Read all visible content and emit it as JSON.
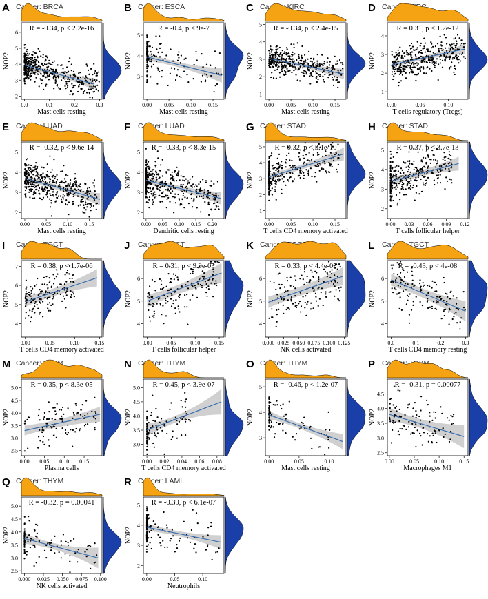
{
  "figure": {
    "ylabel": "NOP2"
  },
  "colors": {
    "top_density": "#F5A312",
    "right_density": "#1A3FA8",
    "fit_line": "#3A6FB0",
    "band": "#C8C8C8",
    "points": "#000000"
  },
  "chart_data": [
    {
      "id": "A",
      "cancer": "Cancer: BRCA",
      "stat": "R = -0.34, p < 2.2e-16",
      "type": "scatter",
      "xlabel": "Mast cells resting",
      "ylabel": "NOP2",
      "xticks": [
        0.0,
        0.1,
        0.2,
        0.3
      ],
      "xticklabels": [
        "0.0",
        "0.1",
        "0.2",
        "0.3"
      ],
      "xlim": [
        -0.012,
        0.31
      ],
      "yticks": [
        2,
        3,
        4,
        5,
        6
      ],
      "yticklabels": [
        "2",
        "3",
        "4",
        "5",
        "6"
      ],
      "ylim": [
        1.8,
        6.6
      ],
      "fit": {
        "x": [
          0.0,
          0.28
        ],
        "y": [
          3.95,
          2.75
        ]
      },
      "band_width": [
        0.15,
        0.35
      ],
      "n_points": 500,
      "x_spread": [
        0.0,
        0.3
      ],
      "x_skew": 2.2,
      "y_center": 3.5,
      "y_sd": 0.55
    },
    {
      "id": "B",
      "cancer": "Cancer: ESCA",
      "stat": "R = -0.4, p < 9e-7",
      "type": "scatter",
      "xlabel": "Mast cells resting",
      "ylabel": "NOP2",
      "xticks": [
        0.0,
        0.05,
        0.1,
        0.15
      ],
      "xticklabels": [
        "0.00",
        "0.05",
        "0.10",
        "0.15"
      ],
      "xlim": [
        -0.008,
        0.175
      ],
      "yticks": [
        3,
        4,
        5
      ],
      "yticklabels": [
        "3",
        "4",
        "5"
      ],
      "ylim": [
        1.9,
        5.6
      ],
      "fit": {
        "x": [
          0.0,
          0.17
        ],
        "y": [
          3.95,
          3.05
        ]
      },
      "band_width": [
        0.12,
        0.35
      ],
      "n_points": 150,
      "x_spread": [
        0.0,
        0.17
      ],
      "x_skew": 1.8,
      "y_center": 3.6,
      "y_sd": 0.6,
      "x_zero_frac": 0.3
    },
    {
      "id": "C",
      "cancer": "Cancer: KIRC",
      "stat": "R = -0.34, p < 2.4e-15",
      "type": "scatter",
      "xlabel": "Mast cells resting",
      "ylabel": "NOP2",
      "xticks": [
        0.0,
        0.05,
        0.1,
        0.15
      ],
      "xticklabels": [
        "0.00",
        "0.05",
        "0.10",
        "0.15"
      ],
      "xlim": [
        -0.008,
        0.175
      ],
      "yticks": [
        1,
        2,
        3,
        4,
        5
      ],
      "yticklabels": [
        "1",
        "2",
        "3",
        "4",
        "5"
      ],
      "ylim": [
        0.7,
        5.1
      ],
      "fit": {
        "x": [
          0.0,
          0.17
        ],
        "y": [
          3.05,
          2.15
        ]
      },
      "band_width": [
        0.1,
        0.3
      ],
      "n_points": 400,
      "x_spread": [
        0.0,
        0.17
      ],
      "x_skew": 1.6,
      "y_center": 2.7,
      "y_sd": 0.5
    },
    {
      "id": "D",
      "cancer": "Cancer: KIRC",
      "stat": "R = 0.31, p < 1.2e-12",
      "type": "scatter",
      "xlabel": "T cells regulatory (Tregs)",
      "ylabel": "NOP2",
      "xticks": [
        0.0,
        0.05,
        0.1
      ],
      "xticklabels": [
        "0.00",
        "0.05",
        "0.10"
      ],
      "xlim": [
        -0.008,
        0.135
      ],
      "yticks": [
        1,
        2,
        3,
        4
      ],
      "yticklabels": [
        "1",
        "2",
        "3",
        "4"
      ],
      "ylim": [
        0.6,
        4.7
      ],
      "fit": {
        "x": [
          0.0,
          0.13
        ],
        "y": [
          2.45,
          3.3
        ]
      },
      "band_width": [
        0.1,
        0.25
      ],
      "n_points": 400,
      "x_spread": [
        0.0,
        0.13
      ],
      "x_skew": 1.2,
      "y_center": 2.8,
      "y_sd": 0.5
    },
    {
      "id": "E",
      "cancer": "Cancer: LUAD",
      "stat": "R = -0.32, p < 9.6e-14",
      "type": "scatter",
      "xlabel": "Mast cells resting",
      "ylabel": "NOP2",
      "xticks": [
        0.0,
        0.05,
        0.1,
        0.15
      ],
      "xticklabels": [
        "0.00",
        "0.05",
        "0.10",
        "0.15"
      ],
      "xlim": [
        -0.008,
        0.18
      ],
      "yticks": [
        2,
        3,
        4,
        5
      ],
      "yticklabels": [
        "2",
        "3",
        "4",
        "5"
      ],
      "ylim": [
        1.7,
        5.5
      ],
      "fit": {
        "x": [
          0.0,
          0.175
        ],
        "y": [
          3.7,
          2.65
        ]
      },
      "band_width": [
        0.12,
        0.3
      ],
      "n_points": 450,
      "x_spread": [
        0.0,
        0.17
      ],
      "x_skew": 1.5,
      "y_center": 3.3,
      "y_sd": 0.55
    },
    {
      "id": "F",
      "cancer": "Cancer: LUAD",
      "stat": "R = -0.33, p < 8.3e-15",
      "type": "scatter",
      "xlabel": "Dendritic cells resting",
      "ylabel": "NOP2",
      "xticks": [
        0.0,
        0.05,
        0.1,
        0.15,
        0.2
      ],
      "xticklabels": [
        "0.00",
        "0.05",
        "0.10",
        "0.15",
        "0.20"
      ],
      "xlim": [
        -0.008,
        0.235
      ],
      "yticks": [
        2,
        3,
        4,
        5
      ],
      "yticklabels": [
        "2",
        "3",
        "4",
        "5"
      ],
      "ylim": [
        1.7,
        5.5
      ],
      "fit": {
        "x": [
          0.0,
          0.225
        ],
        "y": [
          3.6,
          2.7
        ]
      },
      "band_width": [
        0.12,
        0.3
      ],
      "n_points": 450,
      "x_spread": [
        0.0,
        0.22
      ],
      "x_skew": 2.0,
      "y_center": 3.3,
      "y_sd": 0.55,
      "x_zero_frac": 0.15
    },
    {
      "id": "G",
      "cancer": "Cancer: STAD",
      "stat": "R = 0.32, p < 3.1e-10",
      "type": "scatter",
      "xlabel": "T cells CD4 memory activated",
      "ylabel": "NOP2",
      "xticks": [
        0.0,
        0.05,
        0.1,
        0.15
      ],
      "xticklabels": [
        "0.00",
        "0.05",
        "0.10",
        "0.15"
      ],
      "xlim": [
        -0.008,
        0.175
      ],
      "yticks": [
        1,
        2,
        3,
        4,
        5
      ],
      "yticklabels": [
        "1",
        "2",
        "3",
        "4",
        "5"
      ],
      "ylim": [
        0.5,
        5.3
      ],
      "fit": {
        "x": [
          0.0,
          0.17
        ],
        "y": [
          3.1,
          4.55
        ]
      },
      "band_width": [
        0.15,
        0.4
      ],
      "n_points": 350,
      "x_spread": [
        0.0,
        0.16
      ],
      "x_skew": 1.8,
      "y_center": 3.4,
      "y_sd": 0.65,
      "x_zero_frac": 0.3
    },
    {
      "id": "H",
      "cancer": "Cancer: STAD",
      "stat": "R = 0.37, p < 3.7e-13",
      "type": "scatter",
      "xlabel": "T cells follicular helper",
      "ylabel": "NOP2",
      "xticks": [
        0.0,
        0.03,
        0.06,
        0.09,
        0.12
      ],
      "xticklabels": [
        "0.00",
        "0.03",
        "0.06",
        "0.09",
        "0.12"
      ],
      "xlim": [
        -0.005,
        0.125
      ],
      "yticks": [
        2,
        3,
        4,
        5
      ],
      "yticklabels": [
        "2",
        "3",
        "4",
        "5"
      ],
      "ylim": [
        1.5,
        5.4
      ],
      "fit": {
        "x": [
          0.0,
          0.11
        ],
        "y": [
          3.4,
          4.3
        ]
      },
      "band_width": [
        0.15,
        0.35
      ],
      "n_points": 350,
      "x_spread": [
        0.0,
        0.1
      ],
      "x_skew": 1.3,
      "y_center": 3.6,
      "y_sd": 0.6,
      "x_zero_frac": 0.2
    },
    {
      "id": "I",
      "cancer": "Cancer: TGCT",
      "stat": "R = 0.38, p < 1.7e-06",
      "type": "scatter",
      "xlabel": "T cells CD4 memory activated",
      "ylabel": "NOP2",
      "xticks": [
        0.0,
        0.05,
        0.1,
        0.15
      ],
      "xticklabels": [
        "0.00",
        "0.05",
        "0.10",
        "0.15"
      ],
      "xlim": [
        -0.008,
        0.155
      ],
      "yticks": [
        4,
        5,
        6,
        7
      ],
      "yticklabels": [
        "4",
        "5",
        "6",
        "7"
      ],
      "ylim": [
        3.3,
        7.3
      ],
      "fit": {
        "x": [
          0.0,
          0.145
        ],
        "y": [
          5.15,
          6.4
        ]
      },
      "band_width": [
        0.2,
        0.45
      ],
      "n_points": 150,
      "x_spread": [
        0.0,
        0.1
      ],
      "x_skew": 1.5,
      "y_center": 5.5,
      "y_sd": 0.6
    },
    {
      "id": "J",
      "cancer": "Cancer: TGCT",
      "stat": "R = 0.31, p < 9.9e-05",
      "type": "scatter",
      "xlabel": "T cells follicular helper",
      "ylabel": "NOP2",
      "xticks": [
        0.0,
        0.05,
        0.1,
        0.15
      ],
      "xticklabels": [
        "0.00",
        "0.05",
        "0.10",
        "0.15"
      ],
      "xlim": [
        -0.008,
        0.16
      ],
      "yticks": [
        4,
        5,
        6
      ],
      "yticklabels": [
        "4",
        "5",
        "6"
      ],
      "ylim": [
        3.4,
        6.8
      ],
      "fit": {
        "x": [
          0.0,
          0.155
        ],
        "y": [
          5.0,
          6.25
        ]
      },
      "band_width": [
        0.2,
        0.45
      ],
      "n_points": 150,
      "x_spread": [
        0.0,
        0.15
      ],
      "x_skew": 1.2,
      "y_center": 5.5,
      "y_sd": 0.6
    },
    {
      "id": "K",
      "cancer": "Cancer: TGCT",
      "stat": "R = 0.33, p < 4.4e-05",
      "type": "scatter",
      "xlabel": "NK cells activated",
      "ylabel": "NOP2",
      "xticks": [
        0.0,
        0.025,
        0.05,
        0.075,
        0.1,
        0.125
      ],
      "xticklabels": [
        "0.000",
        "0.025",
        "0.050",
        "0.075",
        "0.100",
        "0.125"
      ],
      "xlim": [
        -0.005,
        0.128
      ],
      "yticks": [
        4,
        5,
        6
      ],
      "yticklabels": [
        "4",
        "5",
        "6"
      ],
      "ylim": [
        3.4,
        6.8
      ],
      "fit": {
        "x": [
          0.0,
          0.123
        ],
        "y": [
          4.95,
          6.1
        ]
      },
      "band_width": [
        0.2,
        0.4
      ],
      "n_points": 150,
      "x_spread": [
        0.0,
        0.12
      ],
      "x_skew": 1.0,
      "y_center": 5.5,
      "y_sd": 0.6
    },
    {
      "id": "L",
      "cancer": "Cancer: TGCT",
      "stat": "R = -0.43, p < 4e-08",
      "type": "scatter",
      "xlabel": "T cells CD4 memory resting",
      "ylabel": "NOP2",
      "xticks": [
        0.0,
        0.1,
        0.2,
        0.3
      ],
      "xticklabels": [
        "0.0",
        "0.1",
        "0.2",
        "0.3"
      ],
      "xlim": [
        -0.015,
        0.31
      ],
      "yticks": [
        4,
        5,
        6
      ],
      "yticklabels": [
        "4",
        "5",
        "6"
      ],
      "ylim": [
        3.4,
        6.8
      ],
      "fit": {
        "x": [
          0.0,
          0.3
        ],
        "y": [
          5.95,
          4.55
        ]
      },
      "band_width": [
        0.2,
        0.45
      ],
      "n_points": 150,
      "x_spread": [
        0.0,
        0.3
      ],
      "x_skew": 1.3,
      "y_center": 5.4,
      "y_sd": 0.6
    },
    {
      "id": "M",
      "cancer": "Cancer: THYM",
      "stat": "R = 0.35, p < 8.3e-05",
      "type": "scatter",
      "xlabel": "Plasma cells",
      "ylabel": "NOP2",
      "xticks": [
        0.0,
        0.05,
        0.1,
        0.15
      ],
      "xticklabels": [
        "0.00",
        "0.05",
        "0.10",
        "0.15"
      ],
      "xlim": [
        -0.008,
        0.195
      ],
      "yticks": [
        2.5,
        3.0,
        3.5,
        4.0,
        4.5,
        5.0
      ],
      "yticklabels": [
        "2.5",
        "3.0",
        "3.5",
        "4.0",
        "4.5",
        "5.0"
      ],
      "ylim": [
        2.3,
        5.35
      ],
      "fit": {
        "x": [
          0.0,
          0.19
        ],
        "y": [
          3.3,
          3.95
        ]
      },
      "band_width": [
        0.15,
        0.3
      ],
      "n_points": 110,
      "x_spread": [
        0.0,
        0.18
      ],
      "x_skew": 0.9,
      "y_center": 3.6,
      "y_sd": 0.45
    },
    {
      "id": "N",
      "cancer": "Cancer: THYM",
      "stat": "R = 0.45, p < 3.9e-07",
      "type": "scatter",
      "xlabel": "T cells CD4 memory activated",
      "ylabel": "NOP2",
      "xticks": [
        0.0,
        0.02,
        0.04,
        0.06,
        0.08
      ],
      "xticklabels": [
        "0.00",
        "0.02",
        "0.04",
        "0.06",
        "0.08"
      ],
      "xlim": [
        -0.004,
        0.088
      ],
      "yticks": [
        3.0,
        3.5,
        4.0,
        4.5,
        5.0
      ],
      "yticklabels": [
        "3.0",
        "3.5",
        "4.0",
        "4.5",
        "5.0"
      ],
      "ylim": [
        2.6,
        5.3
      ],
      "fit": {
        "x": [
          0.0,
          0.085
        ],
        "y": [
          3.5,
          4.5
        ]
      },
      "band_width": [
        0.12,
        0.45
      ],
      "n_points": 110,
      "x_spread": [
        0.0,
        0.05
      ],
      "x_skew": 1.3,
      "y_center": 3.7,
      "y_sd": 0.45,
      "x_zero_frac": 0.35
    },
    {
      "id": "O",
      "cancer": "Cancer: THYM",
      "stat": "R = -0.46, p < 1.2e-07",
      "type": "scatter",
      "xlabel": "Mast cells resting",
      "ylabel": "NOP2",
      "xticks": [
        0.0,
        0.05,
        0.1
      ],
      "xticklabels": [
        "0.00",
        "0.05",
        "0.10"
      ],
      "xlim": [
        -0.006,
        0.128
      ],
      "yticks": [
        3,
        4,
        5
      ],
      "yticklabels": [
        "3",
        "4",
        "5"
      ],
      "ylim": [
        2.3,
        5.3
      ],
      "fit": {
        "x": [
          0.0,
          0.123
        ],
        "y": [
          3.9,
          2.85
        ]
      },
      "band_width": [
        0.1,
        0.3
      ],
      "n_points": 110,
      "x_spread": [
        0.0,
        0.11
      ],
      "x_skew": 1.8,
      "y_center": 3.6,
      "y_sd": 0.4,
      "x_zero_frac": 0.3
    },
    {
      "id": "P",
      "cancer": "Cancer: THYM",
      "stat": "R = -0.31, p = 0.00077",
      "type": "scatter",
      "xlabel": "Macrophages M1",
      "ylabel": "NOP2",
      "xticks": [
        0.0,
        0.05,
        0.1,
        0.15
      ],
      "xticklabels": [
        "0.00",
        "0.05",
        "0.10",
        "0.15"
      ],
      "xlim": [
        -0.004,
        0.158
      ],
      "yticks": [
        2.5,
        3.0,
        3.5,
        4.0,
        4.5
      ],
      "yticklabels": [
        "2.5",
        "3.0",
        "3.5",
        "4.0",
        "4.5"
      ],
      "ylim": [
        2.4,
        5.0
      ],
      "fit": {
        "x": [
          0.0,
          0.15
        ],
        "y": [
          3.8,
          3.05
        ]
      },
      "band_width": [
        0.15,
        0.4
      ],
      "n_points": 110,
      "x_spread": [
        0.0,
        0.13
      ],
      "x_skew": 1.2,
      "y_center": 3.6,
      "y_sd": 0.45
    },
    {
      "id": "Q",
      "cancer": "Cancer: THYM",
      "stat": "R = -0.32, p = 0.00041",
      "type": "scatter",
      "xlabel": "NK cells activated",
      "ylabel": "NOP2",
      "xticks": [
        0.0,
        0.025,
        0.05,
        0.075,
        0.1
      ],
      "xticklabels": [
        "0.000",
        "0.025",
        "0.050",
        "0.075",
        "0.100"
      ],
      "xlim": [
        -0.004,
        0.102
      ],
      "yticks": [
        2.5,
        3.0,
        3.5,
        4.0,
        4.5,
        5.0
      ],
      "yticklabels": [
        "2.5",
        "3.0",
        "3.5",
        "4.0",
        "4.5",
        "5.0"
      ],
      "ylim": [
        2.4,
        5.35
      ],
      "fit": {
        "x": [
          0.0,
          0.097
        ],
        "y": [
          3.75,
          3.0
        ]
      },
      "band_width": [
        0.12,
        0.4
      ],
      "n_points": 110,
      "x_spread": [
        0.0,
        0.095
      ],
      "x_skew": 1.6,
      "y_center": 3.5,
      "y_sd": 0.45,
      "x_zero_frac": 0.3
    },
    {
      "id": "R",
      "cancer": "Cancer: LAML",
      "stat": "R = -0.39, p < 6.1e-07",
      "type": "scatter",
      "xlabel": "Neutrophils",
      "ylabel": "NOP2",
      "xticks": [
        0.0,
        0.05,
        0.1
      ],
      "xticklabels": [
        "0.00",
        "0.05",
        "0.10"
      ],
      "xlim": [
        -0.006,
        0.138
      ],
      "yticks": [
        2,
        3,
        4,
        5
      ],
      "yticklabels": [
        "2",
        "3",
        "4",
        "5"
      ],
      "ylim": [
        1.6,
        5.4
      ],
      "fit": {
        "x": [
          0.0,
          0.133
        ],
        "y": [
          3.9,
          3.15
        ]
      },
      "band_width": [
        0.12,
        0.35
      ],
      "n_points": 150,
      "x_spread": [
        0.0,
        0.13
      ],
      "x_skew": 2.0,
      "y_center": 3.6,
      "y_sd": 0.55,
      "x_zero_frac": 0.55
    }
  ]
}
